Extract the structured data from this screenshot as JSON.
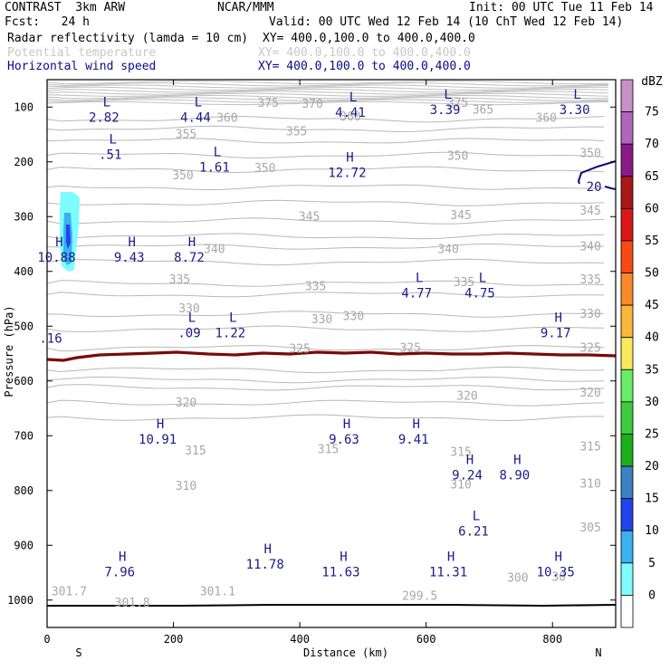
{
  "header": {
    "line1_left": "CONTRAST  3km ARW",
    "line1_mid": "NCAR/MMM",
    "line1_right": "Init: 00 UTC Tue 11 Feb 14",
    "line2_left": "Fcst:   24 h",
    "line2_right": "Valid: 00 UTC Wed 12 Feb 14 (10 ChT Wed 12 Feb 14)",
    "field1": "Radar reflectivity (lamda = 10 cm)",
    "field1_xy": "XY= 400.0,100.0 to 400.0,400.0",
    "field2": "Potential temperature",
    "field2_xy": "XY= 400.0,100.0 to 400.0,400.0",
    "field3": "Horizontal wind speed",
    "field3_xy": "XY= 400.0,100.0 to 400.0,400.0"
  },
  "colors": {
    "theta": "#a8a8a8",
    "wind_labels": "#1a1a8c",
    "zero_line": "#7a0a0a",
    "jet": "#0a0a7a"
  },
  "chart_data": {
    "type": "cross-section",
    "xlabel": "Distance (km)",
    "ylabel": "Pressure (hPa)",
    "xlim": [
      0,
      900
    ],
    "ylim": [
      1050,
      50
    ],
    "x_ticks": [
      "0",
      "200",
      "400",
      "600",
      "800"
    ],
    "x_tick_values": [
      0,
      200,
      400,
      600,
      800
    ],
    "y_ticks": [
      "100",
      "200",
      "300",
      "400",
      "500",
      "600",
      "700",
      "800",
      "900",
      "1000"
    ],
    "y_tick_values": [
      100,
      200,
      300,
      400,
      500,
      600,
      700,
      800,
      900,
      1000
    ],
    "end_labels": {
      "left": "S",
      "right": "N"
    },
    "theta_contours": [
      {
        "value": "375",
        "x": 350,
        "p": 93
      },
      {
        "value": "370",
        "x": 420,
        "p": 95
      },
      {
        "value": "375",
        "x": 650,
        "p": 93
      },
      {
        "value": "365",
        "x": 690,
        "p": 105
      },
      {
        "value": "360",
        "x": 285,
        "p": 120
      },
      {
        "value": "360",
        "x": 480,
        "p": 118
      },
      {
        "value": "360",
        "x": 790,
        "p": 120
      },
      {
        "value": "355",
        "x": 220,
        "p": 150
      },
      {
        "value": "355",
        "x": 395,
        "p": 145
      },
      {
        "value": "350",
        "x": 215,
        "p": 225
      },
      {
        "value": "350",
        "x": 345,
        "p": 212
      },
      {
        "value": "350",
        "x": 650,
        "p": 190
      },
      {
        "value": "350",
        "x": 860,
        "p": 185
      },
      {
        "value": "345",
        "x": 415,
        "p": 300
      },
      {
        "value": "345",
        "x": 655,
        "p": 298
      },
      {
        "value": "345",
        "x": 860,
        "p": 290
      },
      {
        "value": "340",
        "x": 635,
        "p": 360
      },
      {
        "value": "340",
        "x": 860,
        "p": 355
      },
      {
        "value": "340",
        "x": 265,
        "p": 360
      },
      {
        "value": "335",
        "x": 210,
        "p": 415
      },
      {
        "value": "335",
        "x": 425,
        "p": 428
      },
      {
        "value": "335",
        "x": 660,
        "p": 420
      },
      {
        "value": "335",
        "x": 860,
        "p": 415
      },
      {
        "value": "330",
        "x": 225,
        "p": 468
      },
      {
        "value": "330",
        "x": 435,
        "p": 488
      },
      {
        "value": "330",
        "x": 485,
        "p": 482
      },
      {
        "value": "330",
        "x": 860,
        "p": 478
      },
      {
        "value": "325",
        "x": 400,
        "p": 542
      },
      {
        "value": "325",
        "x": 575,
        "p": 540
      },
      {
        "value": "325",
        "x": 860,
        "p": 540
      },
      {
        "value": "320",
        "x": 220,
        "p": 640
      },
      {
        "value": "320",
        "x": 665,
        "p": 628
      },
      {
        "value": "320",
        "x": 860,
        "p": 622
      },
      {
        "value": "315",
        "x": 235,
        "p": 728
      },
      {
        "value": "315",
        "x": 445,
        "p": 725
      },
      {
        "value": "315",
        "x": 655,
        "p": 730
      },
      {
        "value": "315",
        "x": 860,
        "p": 720
      },
      {
        "value": "310",
        "x": 220,
        "p": 792
      },
      {
        "value": "310",
        "x": 655,
        "p": 790
      },
      {
        "value": "310",
        "x": 860,
        "p": 788
      },
      {
        "value": "305",
        "x": 860,
        "p": 868
      },
      {
        "value": "301.7",
        "x": 35,
        "p": 985
      },
      {
        "value": "301.8",
        "x": 135,
        "p": 1005
      },
      {
        "value": "301.1",
        "x": 270,
        "p": 985
      },
      {
        "value": "299.5",
        "x": 590,
        "p": 993
      },
      {
        "value": "300",
        "x": 745,
        "p": 960
      },
      {
        "value": "30",
        "x": 810,
        "p": 958
      }
    ],
    "wind_extrema": [
      {
        "type": "L",
        "value": "2.82",
        "x": 90,
        "p": 107
      },
      {
        "type": "L",
        "value": "4.44",
        "x": 235,
        "p": 107
      },
      {
        "type": "L",
        "value": "4.41",
        "x": 480,
        "p": 98
      },
      {
        "type": "L",
        "value": "3.39",
        "x": 630,
        "p": 93
      },
      {
        "type": "L",
        "value": "3.30",
        "x": 835,
        "p": 93
      },
      {
        "type": "L",
        "value": ".51",
        "x": 100,
        "p": 175
      },
      {
        "type": "L",
        "value": "1.61",
        "x": 265,
        "p": 198
      },
      {
        "type": "H",
        "value": "12.72",
        "x": 475,
        "p": 208
      },
      {
        "type": "H",
        "value": "10.88",
        "x": 15,
        "p": 362
      },
      {
        "type": "H",
        "value": "9.43",
        "x": 130,
        "p": 362
      },
      {
        "type": "H",
        "value": "8.72",
        "x": 225,
        "p": 362
      },
      {
        "type": "L",
        "value": "4.77",
        "x": 585,
        "p": 428
      },
      {
        "type": "L",
        "value": "4.75",
        "x": 685,
        "p": 428
      },
      {
        "type": "L",
        "value": ".09",
        "x": 225,
        "p": 500
      },
      {
        "type": "L",
        "value": "1.22",
        "x": 290,
        "p": 500
      },
      {
        "type": "H",
        "value": "9.17",
        "x": 805,
        "p": 500
      },
      {
        "type": "H",
        "value": "10.91",
        "x": 175,
        "p": 695
      },
      {
        "type": "H",
        "value": "9.63",
        "x": 470,
        "p": 695
      },
      {
        "type": "H",
        "value": "9.41",
        "x": 580,
        "p": 695
      },
      {
        "type": "H",
        "value": "9.24",
        "x": 665,
        "p": 760
      },
      {
        "type": "H",
        "value": "8.90",
        "x": 740,
        "p": 760
      },
      {
        "type": "L",
        "value": "6.21",
        "x": 675,
        "p": 862
      },
      {
        "type": "H",
        "value": "7.96",
        "x": 115,
        "p": 937
      },
      {
        "type": "H",
        "value": "11.78",
        "x": 345,
        "p": 923
      },
      {
        "type": "H",
        "value": "11.63",
        "x": 465,
        "p": 937
      },
      {
        "type": "H",
        "value": "11.31",
        "x": 635,
        "p": 937
      },
      {
        "type": "H",
        "value": "10.35",
        "x": 805,
        "p": 937
      }
    ],
    "edge_labels": [
      {
        "value": ".16",
        "x": 0,
        "p": 522
      },
      {
        "value": "20",
        "x": 860,
        "p": 245
      }
    ],
    "colorbar": {
      "title": "dBZ",
      "levels": [
        "0",
        "5",
        "10",
        "15",
        "20",
        "25",
        "30",
        "35",
        "40",
        "45",
        "50",
        "55",
        "60",
        "65",
        "70",
        "75"
      ],
      "colors": [
        "#ffffff",
        "#7ffcfd",
        "#3ab2f0",
        "#2244ee",
        "#3a82c1",
        "#1ab01a",
        "#3ccc3c",
        "#66ee66",
        "#f8e85a",
        "#f8b83a",
        "#f88a2a",
        "#f84a12",
        "#d81818",
        "#a81818",
        "#8a1a8a",
        "#b066bb",
        "#c890c8"
      ]
    }
  }
}
